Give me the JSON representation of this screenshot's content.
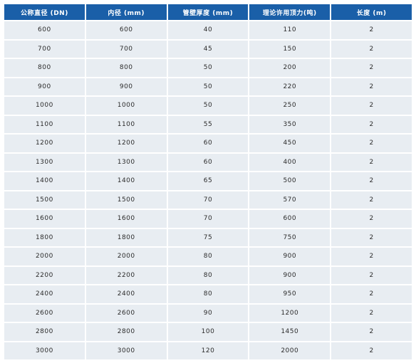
{
  "table": {
    "headers": [
      "公称直径 (DN)",
      "内径 (mm)",
      "管壁厚度 (mm)",
      "理论许用顶力(吨)",
      "长度 (m)"
    ],
    "rows": [
      [
        "600",
        "600",
        "40",
        "110",
        "2"
      ],
      [
        "700",
        "700",
        "45",
        "150",
        "2"
      ],
      [
        "800",
        "800",
        "50",
        "200",
        "2"
      ],
      [
        "900",
        "900",
        "50",
        "220",
        "2"
      ],
      [
        "1000",
        "1000",
        "50",
        "250",
        "2"
      ],
      [
        "1100",
        "1100",
        "55",
        "350",
        "2"
      ],
      [
        "1200",
        "1200",
        "60",
        "450",
        "2"
      ],
      [
        "1300",
        "1300",
        "60",
        "400",
        "2"
      ],
      [
        "1400",
        "1400",
        "65",
        "500",
        "2"
      ],
      [
        "1500",
        "1500",
        "70",
        "570",
        "2"
      ],
      [
        "1600",
        "1600",
        "70",
        "600",
        "2"
      ],
      [
        "1800",
        "1800",
        "75",
        "750",
        "2"
      ],
      [
        "2000",
        "2000",
        "80",
        "900",
        "2"
      ],
      [
        "2200",
        "2200",
        "80",
        "900",
        "2"
      ],
      [
        "2400",
        "2400",
        "80",
        "950",
        "2"
      ],
      [
        "2600",
        "2600",
        "90",
        "1200",
        "2"
      ],
      [
        "2800",
        "2800",
        "100",
        "1450",
        "2"
      ],
      [
        "3000",
        "3000",
        "120",
        "2000",
        "2"
      ]
    ]
  },
  "colors": {
    "header_bg": "#1a5fa8",
    "header_text": "#ffffff",
    "cell_bg": "#e8edf2",
    "cell_text": "#2b2b2b"
  }
}
